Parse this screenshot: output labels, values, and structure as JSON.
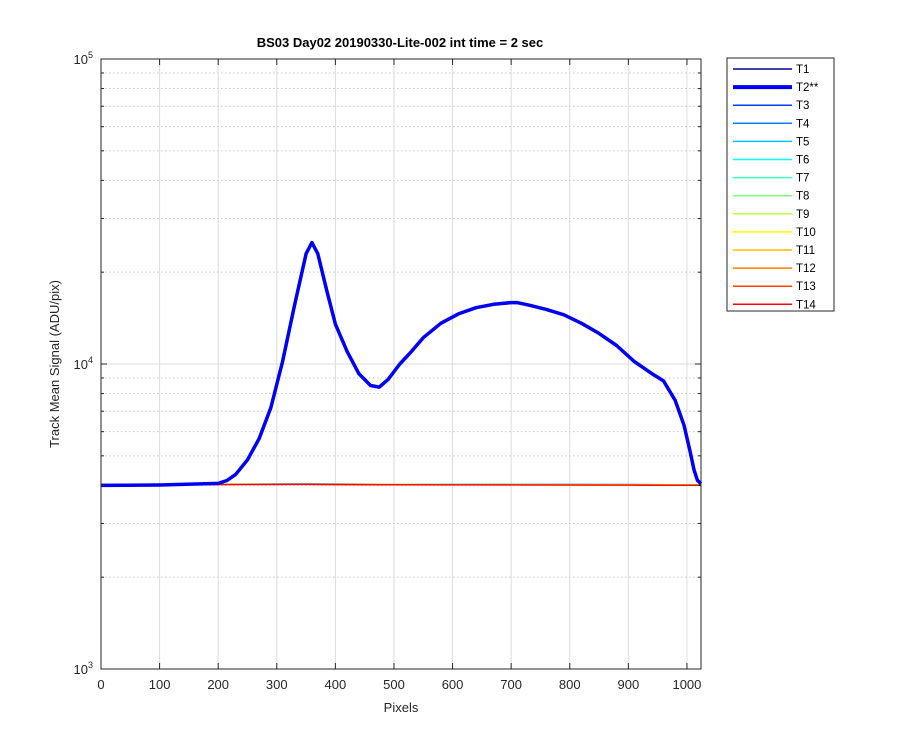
{
  "chart_data": {
    "type": "line",
    "title": "BS03 Day02 20190330-Lite-002 int time = 2 sec",
    "xlabel": "Pixels",
    "ylabel": "Track Mean Signal (ADU/pix)",
    "xlim": [
      0,
      1024
    ],
    "ylim": [
      1000,
      100000
    ],
    "yscale": "log",
    "grid": true,
    "minor_grid_y": true,
    "legend_position": "outside-right",
    "x_ticks": [
      0,
      100,
      200,
      300,
      400,
      500,
      600,
      700,
      800,
      900,
      1000
    ],
    "x_tick_labels": [
      "0",
      "100",
      "200",
      "300",
      "400",
      "500",
      "600",
      "700",
      "800",
      "900",
      "1000"
    ],
    "y_ticks": [
      1000,
      10000,
      100000
    ],
    "y_tick_labels": [
      {
        "base": "10",
        "exp": "3"
      },
      {
        "base": "10",
        "exp": "4"
      },
      {
        "base": "10",
        "exp": "5"
      }
    ],
    "series": [
      {
        "name": "T1",
        "color": "#00008F",
        "flat": 4020
      },
      {
        "name": "T2**",
        "color": "#0000F0",
        "highlighted": true,
        "x": [
          0,
          100,
          200,
          215,
          230,
          250,
          270,
          290,
          310,
          330,
          350,
          360,
          370,
          385,
          400,
          420,
          440,
          460,
          475,
          490,
          510,
          530,
          550,
          580,
          610,
          640,
          670,
          700,
          710,
          730,
          760,
          790,
          820,
          850,
          880,
          910,
          940,
          960,
          980,
          995,
          1005,
          1012,
          1018,
          1024
        ],
        "y": [
          4000,
          4010,
          4060,
          4150,
          4350,
          4850,
          5700,
          7200,
          10200,
          15500,
          23000,
          25000,
          23000,
          17500,
          13500,
          11000,
          9300,
          8500,
          8400,
          8900,
          10000,
          11000,
          12200,
          13600,
          14600,
          15300,
          15700,
          15900,
          15900,
          15600,
          15100,
          14500,
          13600,
          12600,
          11500,
          10200,
          9300,
          8800,
          7600,
          6300,
          5200,
          4500,
          4150,
          4050
        ]
      },
      {
        "name": "T3",
        "color": "#0040FF",
        "flat": 4030
      },
      {
        "name": "T4",
        "color": "#0080FF",
        "flat": 4025
      },
      {
        "name": "T5",
        "color": "#00BFFF",
        "flat": 4030
      },
      {
        "name": "T6",
        "color": "#00FFFF",
        "flat": 4020
      },
      {
        "name": "T7",
        "color": "#40FFBF",
        "flat": 4025
      },
      {
        "name": "T8",
        "color": "#80FF80",
        "flat": 4020
      },
      {
        "name": "T9",
        "color": "#BFFF40",
        "flat": 4025
      },
      {
        "name": "T10",
        "color": "#FFFF00",
        "flat": 4020
      },
      {
        "name": "T11",
        "color": "#FFBF00",
        "flat": 4015
      },
      {
        "name": "T12",
        "color": "#FF8000",
        "flat": 4020
      },
      {
        "name": "T13",
        "color": "#FF4000",
        "flat": 4015
      },
      {
        "name": "T14",
        "color": "#FF0000",
        "flat": 4010
      }
    ]
  }
}
